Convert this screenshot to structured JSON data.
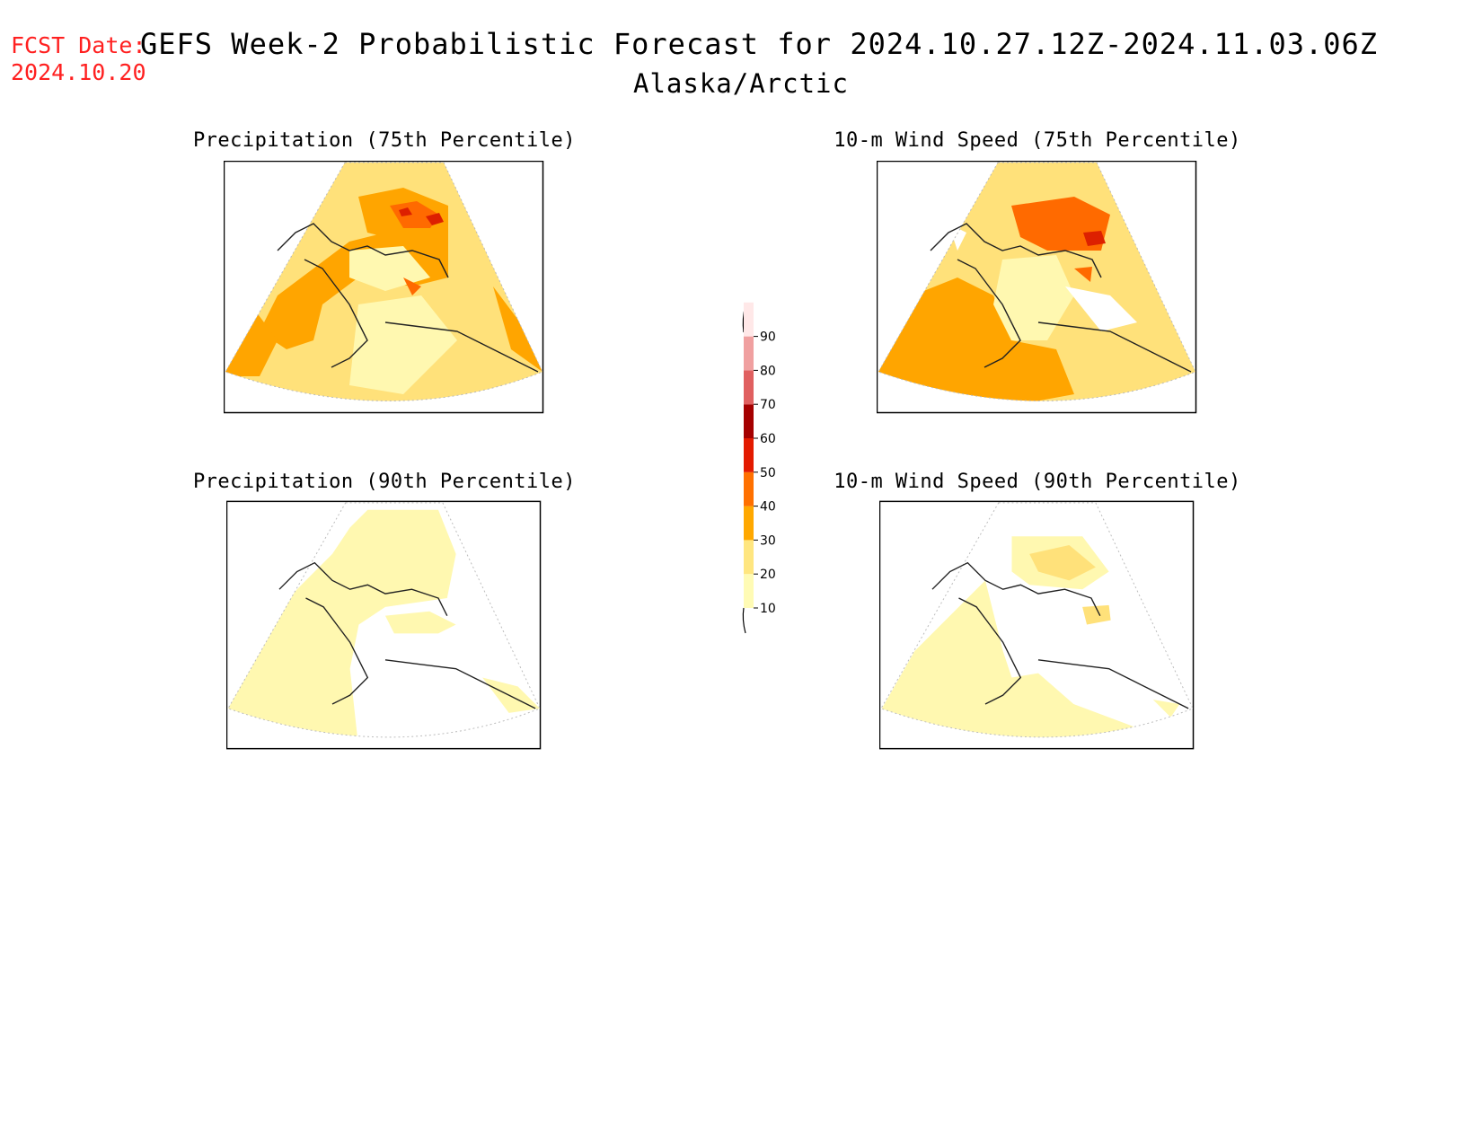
{
  "header": {
    "fcst_label": "FCST Date:",
    "fcst_date": "2024.10.20",
    "title": "GEFS Week-2 Probabilistic Forecast for 2024.10.27.12Z-2024.11.03.06Z",
    "subtitle": "Alaska/Arctic"
  },
  "panels": [
    {
      "id": "precip75",
      "title": "Precipitation (75th Percentile)"
    },
    {
      "id": "wind75",
      "title": "10-m Wind Speed (75th Percentile)"
    },
    {
      "id": "precip90",
      "title": "Precipitation (90th Percentile)"
    },
    {
      "id": "wind90",
      "title": "10-m Wind Speed (90th Percentile)"
    }
  ],
  "legend": {
    "levels": [
      "10",
      "20",
      "30",
      "40",
      "50",
      "60",
      "70",
      "80",
      "90"
    ],
    "colors": [
      "#fffbb5",
      "#ffe680",
      "#ffa800",
      "#ff7000",
      "#e31a00",
      "#a50000",
      "#e06060",
      "#f0a0a0",
      "#ffe8e8"
    ]
  },
  "colors": {
    "fcst_text": "#ff2020",
    "c10": "#fff8b0",
    "c20": "#ffe17a",
    "c30": "#ffa500",
    "c40": "#ff6a00",
    "c50": "#dd2000"
  }
}
